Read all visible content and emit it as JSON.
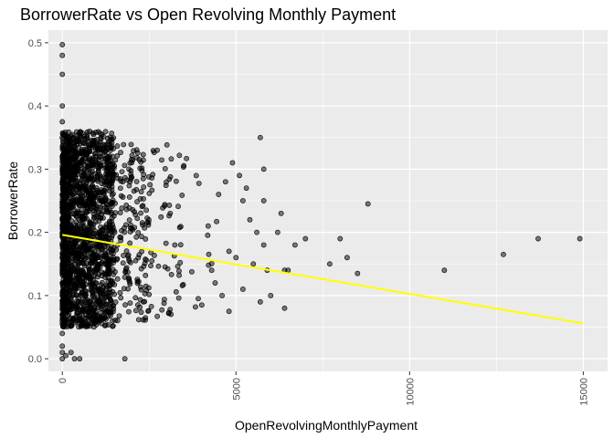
{
  "chart_data": {
    "type": "scatter",
    "title": "BorrowerRate vs Open Revolving Monthly Payment",
    "xlabel": "OpenRevolvingMonthlyPayment",
    "ylabel": "BorrowerRate",
    "xlim": [
      -400,
      15700
    ],
    "ylim": [
      -0.02,
      0.52
    ],
    "x_ticks": [
      {
        "value": 0,
        "label": "0"
      },
      {
        "value": 5000,
        "label": "5000"
      },
      {
        "value": 10000,
        "label": "10000"
      },
      {
        "value": 15000,
        "label": "15000"
      }
    ],
    "y_ticks": [
      {
        "value": 0.0,
        "label": "0.0"
      },
      {
        "value": 0.1,
        "label": "0.1"
      },
      {
        "value": 0.2,
        "label": "0.2"
      },
      {
        "value": 0.3,
        "label": "0.3"
      },
      {
        "value": 0.4,
        "label": "0.4"
      },
      {
        "value": 0.5,
        "label": "0.5"
      }
    ],
    "grid": true,
    "panel_background": "#ebebeb",
    "grid_color": "#ffffff",
    "point_color": "#000000",
    "point_fill_opacity": 0.5,
    "trend_color": "#ffff00",
    "trend_line": {
      "x": [
        0,
        15000
      ],
      "y": [
        0.196,
        0.056
      ]
    },
    "points": [
      [
        0,
        0.497
      ],
      [
        0,
        0.48
      ],
      [
        0,
        0.45
      ],
      [
        0,
        0.4
      ],
      [
        0,
        0.375
      ],
      [
        0,
        0.35
      ],
      [
        0,
        0.32
      ],
      [
        0,
        0.3
      ],
      [
        0,
        0.28
      ],
      [
        0,
        0.26
      ],
      [
        0,
        0.24
      ],
      [
        0,
        0.22
      ],
      [
        0,
        0.2
      ],
      [
        0,
        0.18
      ],
      [
        0,
        0.16
      ],
      [
        0,
        0.14
      ],
      [
        0,
        0.12
      ],
      [
        0,
        0.1
      ],
      [
        0,
        0.08
      ],
      [
        0,
        0.06
      ],
      [
        0,
        0.04
      ],
      [
        0,
        0.02
      ],
      [
        0,
        0.01
      ],
      [
        0,
        0.0
      ],
      [
        100,
        0.005
      ],
      [
        250,
        0.01
      ],
      [
        350,
        0.0
      ],
      [
        500,
        0.0
      ],
      [
        1800,
        0.0
      ],
      [
        5700,
        0.35
      ],
      [
        4900,
        0.31
      ],
      [
        5100,
        0.29
      ],
      [
        4700,
        0.28
      ],
      [
        5300,
        0.27
      ],
      [
        4500,
        0.26
      ],
      [
        5200,
        0.25
      ],
      [
        6300,
        0.23
      ],
      [
        5400,
        0.22
      ],
      [
        4200,
        0.21
      ],
      [
        5600,
        0.2
      ],
      [
        6200,
        0.2
      ],
      [
        5800,
        0.18
      ],
      [
        4800,
        0.17
      ],
      [
        5000,
        0.16
      ],
      [
        5500,
        0.15
      ],
      [
        5900,
        0.14
      ],
      [
        4400,
        0.12
      ],
      [
        5200,
        0.11
      ],
      [
        6000,
        0.1
      ],
      [
        6400,
        0.08
      ],
      [
        5700,
        0.09
      ],
      [
        4800,
        0.075
      ],
      [
        4600,
        0.1
      ],
      [
        4300,
        0.14
      ],
      [
        5800,
        0.3
      ],
      [
        5800,
        0.25
      ],
      [
        6400,
        0.14
      ],
      [
        6500,
        0.14
      ],
      [
        7000,
        0.19
      ],
      [
        6700,
        0.18
      ],
      [
        7700,
        0.15
      ],
      [
        8000,
        0.19
      ],
      [
        8800,
        0.245
      ],
      [
        8200,
        0.16
      ],
      [
        8500,
        0.135
      ],
      [
        11000,
        0.14
      ],
      [
        12700,
        0.165
      ],
      [
        13700,
        0.19
      ],
      [
        14900,
        0.19
      ]
    ],
    "dense_regions": [
      {
        "x_max": 1500,
        "y_min": 0.05,
        "y_max": 0.36,
        "count": 1300
      },
      {
        "x_max": 2500,
        "y_min": 0.06,
        "y_max": 0.34,
        "count": 450
      },
      {
        "x_max": 3500,
        "y_min": 0.06,
        "y_max": 0.34,
        "count": 220
      },
      {
        "x_max": 4500,
        "y_min": 0.07,
        "y_max": 0.33,
        "count": 90
      }
    ]
  }
}
